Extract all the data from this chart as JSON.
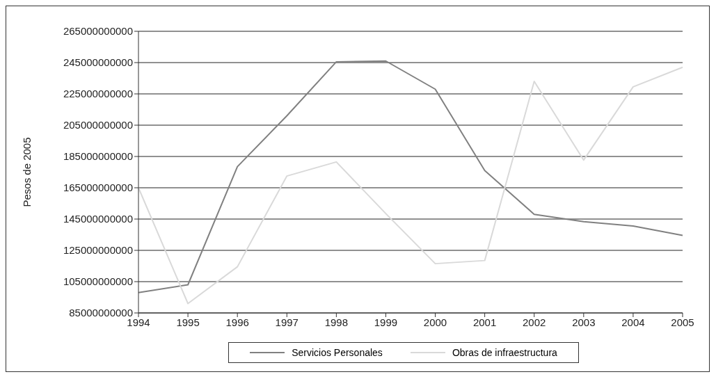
{
  "chart_data": {
    "type": "line",
    "ylabel": "Pesos de 2005",
    "categories": [
      "1994",
      "1995",
      "1996",
      "1997",
      "1998",
      "1999",
      "2000",
      "2001",
      "2002",
      "2003",
      "2004",
      "2005"
    ],
    "series": [
      {
        "name": "Servicios Personales",
        "color": "#808080",
        "values": [
          98000000000,
          103000000000,
          178500000000,
          211000000000,
          245500000000,
          246000000000,
          228000000000,
          176000000000,
          148000000000,
          143300000000,
          140600000000,
          134600000000
        ]
      },
      {
        "name": "Obras de infraestructura",
        "color": "#d9d9d9",
        "values": [
          165000000000,
          91000000000,
          114500000000,
          172500000000,
          181500000000,
          148500000000,
          116500000000,
          118500000000,
          233000000000,
          182700000000,
          229500000000,
          242000000000
        ]
      }
    ],
    "ylim": [
      85000000000,
      265000000000
    ],
    "yticks": [
      85000000000,
      105000000000,
      125000000000,
      145000000000,
      165000000000,
      185000000000,
      205000000000,
      225000000000,
      245000000000,
      265000000000
    ],
    "grid": "y",
    "legend": "bottom",
    "marker": "none",
    "line_style": "solid"
  }
}
